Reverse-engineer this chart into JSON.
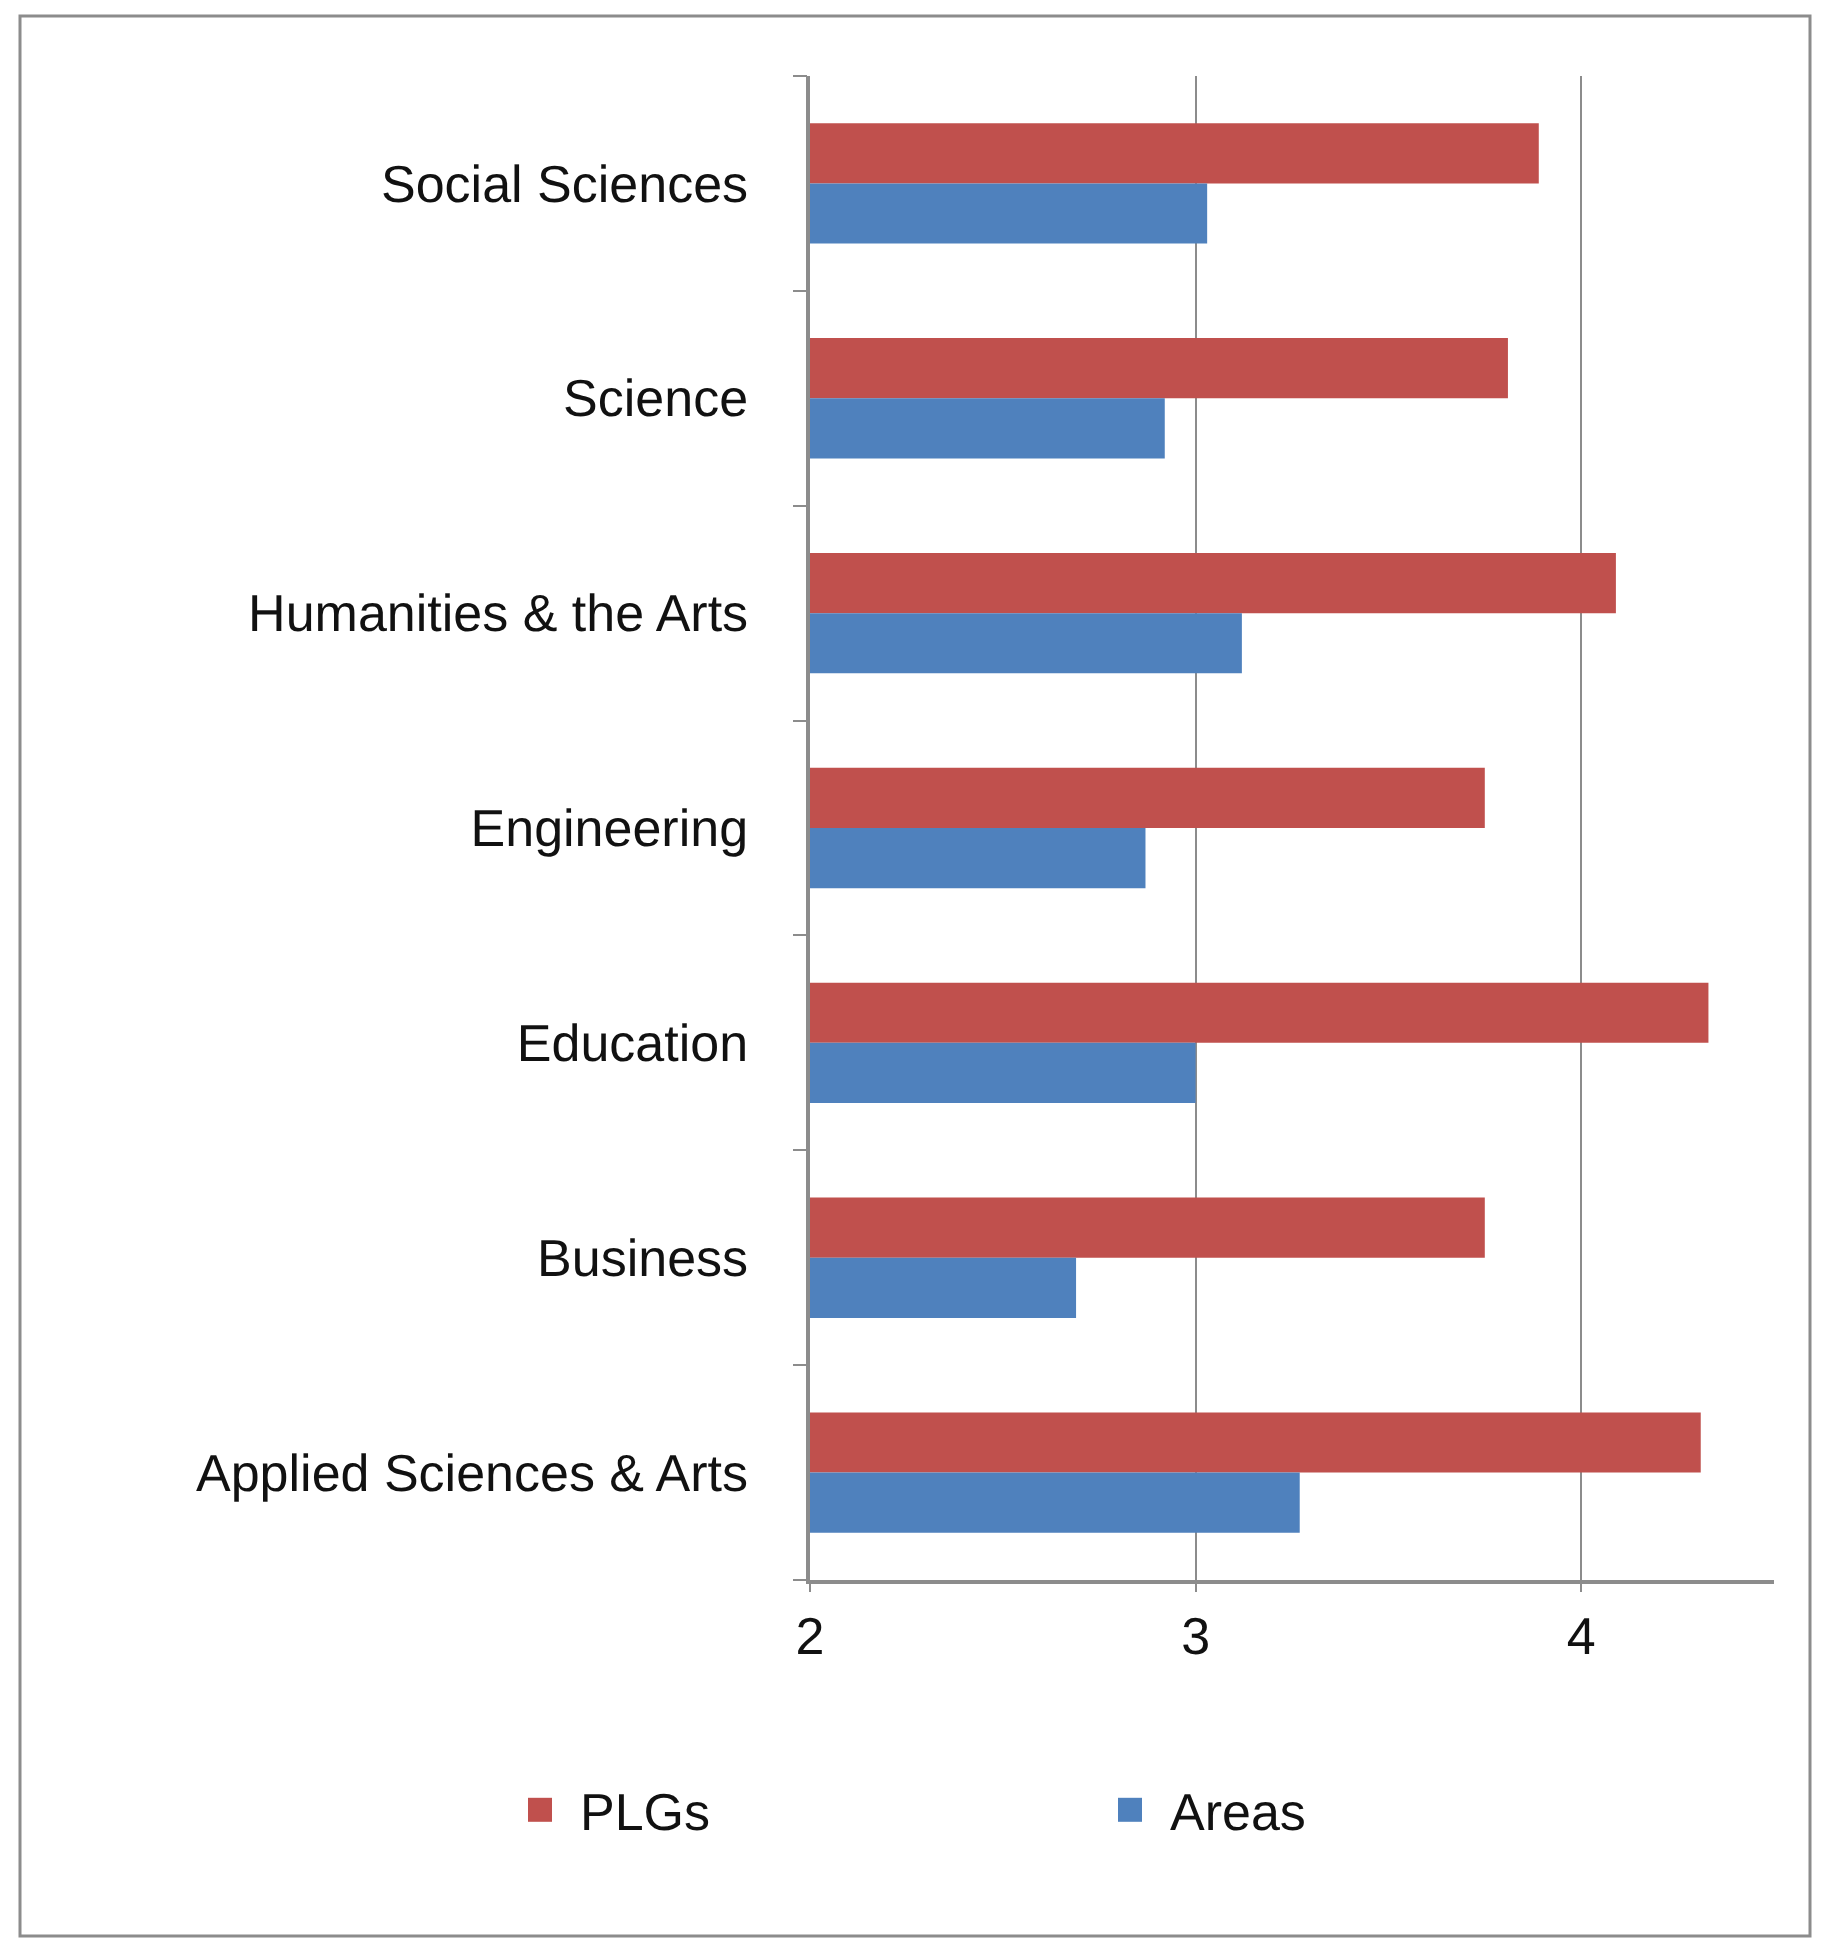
{
  "chart_data": {
    "type": "bar",
    "orientation": "horizontal",
    "categories": [
      "Social Sciences",
      "Science",
      "Humanities & the Arts",
      "Engineering",
      "Education",
      "Business",
      "Applied Sciences & Arts"
    ],
    "series": [
      {
        "name": "PLGs",
        "color": "#c0504d",
        "values": [
          3.89,
          3.81,
          4.09,
          3.75,
          4.33,
          3.75,
          4.31
        ]
      },
      {
        "name": "Areas",
        "color": "#4f81bd",
        "values": [
          3.03,
          2.92,
          3.12,
          2.87,
          3.0,
          2.69,
          3.27
        ]
      }
    ],
    "xlim": [
      2,
      4.5
    ],
    "xticks": [
      2,
      3,
      4
    ],
    "grid": "x",
    "legend": "bottom"
  }
}
